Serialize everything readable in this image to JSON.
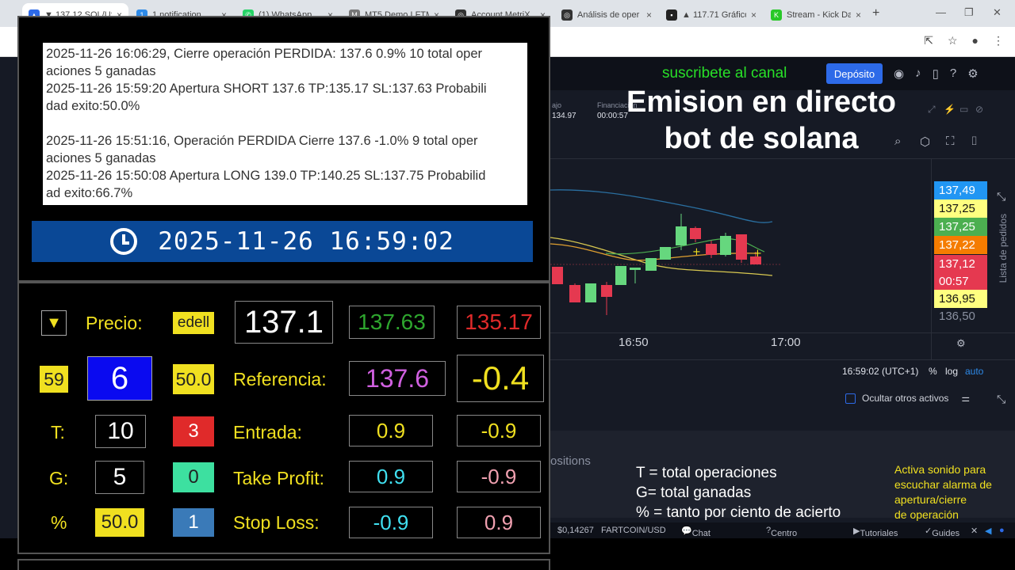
{
  "browser": {
    "tabs": [
      {
        "label": "▼ 137.12 SOL/US",
        "icon": "chart-tab-icon",
        "color": "#2d6ae8"
      },
      {
        "label": "1 notification",
        "icon": "notification-tab-icon",
        "color": "#2d8ae8"
      },
      {
        "label": "(1) WhatsApp",
        "icon": "whatsapp-icon",
        "color": "#25d366"
      },
      {
        "label": "MT5 Demo LFTM",
        "icon": "mt5-tab-icon",
        "color": "#777777"
      },
      {
        "label": "Account MetriX",
        "icon": "metrix-tab-icon",
        "color": "#333333"
      },
      {
        "label": "Análisis de oper",
        "icon": "analysis-tab-icon",
        "color": "#333333"
      },
      {
        "label": "▲ 117.71 Gráfico",
        "icon": "chart-tab-icon",
        "color": "#222222"
      },
      {
        "label": "Stream - Kick Da",
        "icon": "kick-icon",
        "color": "#28c828"
      }
    ],
    "new_tab": "+"
  },
  "exchange": {
    "promo": "suscribete al canal",
    "deposit": "Depósito",
    "stats": [
      {
        "label": "ajo",
        "value": "134.97"
      },
      {
        "label": "Financiación",
        "value": "00:00:57"
      }
    ],
    "price_axis": [
      {
        "value": "137,49",
        "bg": "#2196f3",
        "fg": "#ffffff"
      },
      {
        "value": "137,25",
        "bg": "#ffff80",
        "fg": "#111111"
      },
      {
        "value": "137,25",
        "bg": "#4caf50",
        "fg": "#ffffff"
      },
      {
        "value": "137,22",
        "bg": "#f57c00",
        "fg": "#ffffff"
      },
      {
        "value": "137,12",
        "bg": "#e53950",
        "fg": "#ffffff"
      },
      {
        "value": "00:57",
        "bg": "#e53950",
        "fg": "#ffffff"
      },
      {
        "value": "136,95",
        "bg": "#ffff80",
        "fg": "#111111"
      },
      {
        "value": "136,50",
        "bg": "",
        "fg": "#8a90a0"
      }
    ],
    "order_list_label": "Lista de pedidos",
    "x_axis": [
      "16:50",
      "17:00"
    ],
    "timezone": "16:59:02 (UTC+1)",
    "percent": "%",
    "log": "log",
    "auto": "auto",
    "hide_assets": "Ocultar otros activos",
    "positions": "ositions",
    "status": {
      "price": "$0,14267",
      "pair": "FARTCOIN/USD",
      "chat": "Chat en directo",
      "help": "Centro de ayuda",
      "tutorials": "Tutoriales",
      "guides": "Guides"
    }
  },
  "overlay_title": [
    "Emision en directo",
    "bot de solana"
  ],
  "legend": [
    "T = total operaciones",
    "G= total ganadas",
    "% = tanto por ciento de acierto"
  ],
  "sound_note": [
    "Activa sonido para",
    "escuchar alarma de",
    "apertura/cierre",
    "de operación"
  ],
  "bot": {
    "log": [
      "2025-11-26 16:06:29, Cierre operación PERDIDA: 137.6 0.9% 10 total oper",
      "aciones 5 ganadas",
      "2025-11-26 15:59:20 Apertura SHORT 137.6 TP:135.17 SL:137.63 Probabili",
      "dad exito:50.0%",
      "",
      "2025-11-26 15:51:16, Operación PERDIDA Cierre 137.6  -1.0% 9 total oper",
      "aciones 5 ganadas",
      "2025-11-26 15:50:08 Apertura LONG 139.0 TP:140.25 SL:137.75 Probabilid",
      "ad exito:66.7%"
    ],
    "clock": "2025-11-26 16:59:02",
    "direction_symbol": "▼",
    "precio_label": "Precio:",
    "edell": "edell",
    "precio": "137.1",
    "sl_value": "137.63",
    "tp_value": "135.17",
    "n59": "59",
    "n6": "6",
    "n50": "50.0",
    "referencia_label": "Referencia:",
    "referencia": "137.6",
    "diff": "-0.4",
    "t_label": "T:",
    "t_value": "10",
    "t_red": "3",
    "entrada_label": "Entrada:",
    "entrada_a": "0.9",
    "entrada_b": "-0.9",
    "g_label": "G:",
    "g_value": "5",
    "g_green": "0",
    "tp_label": "Take Profit:",
    "tp_a": "0.9",
    "tp_b": "-0.9",
    "pct_label": "%",
    "pct_value": "50.0",
    "pct_blue": "1",
    "sl_label": "Stop Loss:",
    "sl_a": "-0.9",
    "sl_b": "0.9"
  },
  "colors": {
    "up": "#66d77e",
    "down": "#e53950",
    "ma_blue": "#2a6fa0",
    "ma_orange": "#e0a030",
    "ma_yellow": "#d8c850",
    "ma_green": "#4caf50"
  }
}
